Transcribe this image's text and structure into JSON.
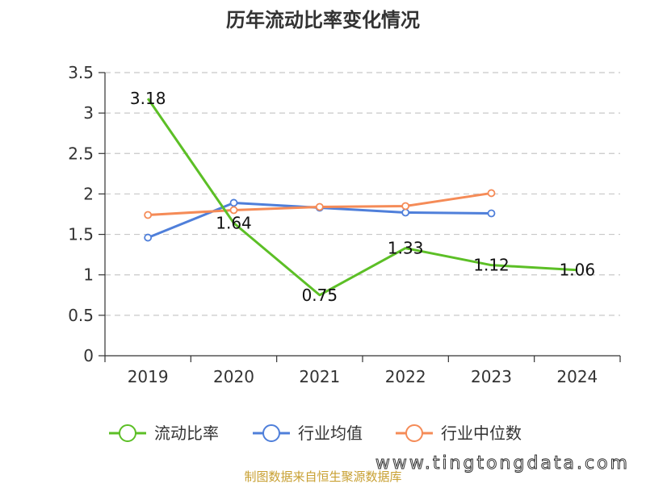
{
  "chart_data": {
    "type": "line",
    "title": "历年流动比率变化情况",
    "categories": [
      "2019",
      "2020",
      "2021",
      "2022",
      "2023",
      "2024"
    ],
    "ylim": [
      0,
      3.5
    ],
    "yticks": [
      "0",
      "0.5",
      "1",
      "1.5",
      "2",
      "2.5",
      "3",
      "3.5"
    ],
    "grid": true,
    "legend_position": "bottom",
    "series": [
      {
        "name": "流动比率",
        "color": "#5cbf26",
        "values": [
          3.18,
          1.64,
          0.75,
          1.33,
          1.12,
          1.06
        ],
        "labels": [
          "3.18",
          "1.64",
          "0.75",
          "1.33",
          "1.12",
          "1.06"
        ]
      },
      {
        "name": "行业均值",
        "color": "#4f7fda",
        "values": [
          1.46,
          1.89,
          1.83,
          1.77,
          1.76,
          null
        ]
      },
      {
        "name": "行业中位数",
        "color": "#f58b57",
        "values": [
          1.74,
          1.8,
          1.84,
          1.85,
          2.01,
          null
        ]
      }
    ]
  },
  "footer": {
    "source": "制图数据来自恒生聚源数据库",
    "watermark": "www.tingtongdata.com"
  }
}
